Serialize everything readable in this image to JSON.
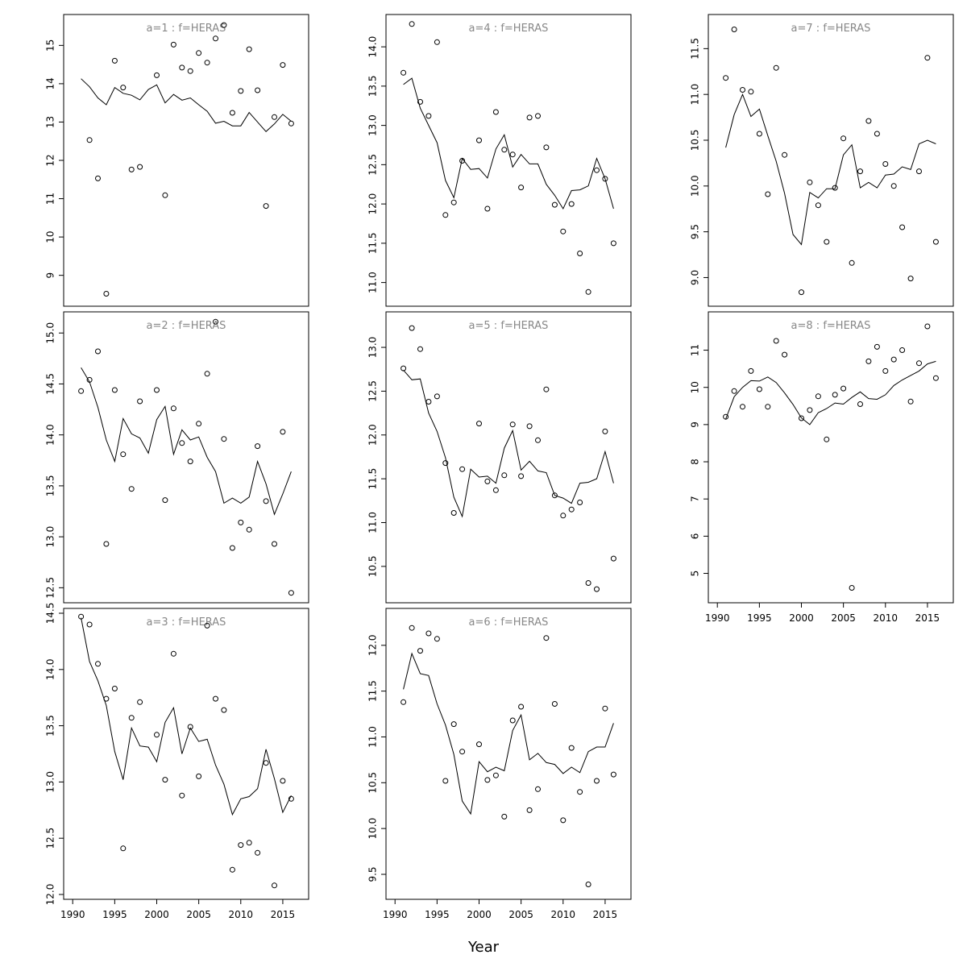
{
  "figure": {
    "xlabel": "Year",
    "line_color": "#000000",
    "point_color": "#000000",
    "title_color": "#888888"
  },
  "chart_data": [
    {
      "type": "scatter",
      "title": "a=1 : f=HERAS",
      "x": [
        1991,
        1992,
        1993,
        1994,
        1995,
        1996,
        1997,
        1998,
        1999,
        2000,
        2001,
        2002,
        2003,
        2004,
        2005,
        2006,
        2007,
        2008,
        2009,
        2010,
        2011,
        2012,
        2013,
        2014,
        2015,
        2016
      ],
      "series": [
        {
          "kind": "points",
          "values": [
            null,
            12.53,
            11.53,
            8.52,
            14.6,
            13.9,
            11.76,
            11.83,
            null,
            14.22,
            11.09,
            15.02,
            14.42,
            14.33,
            14.8,
            14.55,
            15.18,
            15.53,
            13.24,
            13.81,
            14.9,
            13.83,
            10.81,
            13.13,
            14.49,
            12.96
          ]
        },
        {
          "kind": "line",
          "values": [
            14.13,
            13.92,
            13.63,
            13.45,
            13.9,
            13.75,
            13.7,
            13.58,
            13.85,
            13.97,
            13.5,
            13.72,
            13.57,
            13.63,
            13.45,
            13.28,
            12.97,
            13.02,
            12.9,
            12.9,
            13.25,
            13.0,
            12.75,
            12.95,
            13.2,
            13.02
          ]
        }
      ],
      "yticks": [
        9,
        10,
        11,
        12,
        13,
        14,
        15
      ],
      "ylim": [
        8.32,
        15.68
      ],
      "xlim": [
        1989.5,
        2017.5
      ]
    },
    {
      "type": "scatter",
      "title": "a=2 : f=HERAS",
      "x": [
        1991,
        1992,
        1993,
        1994,
        1995,
        1996,
        1997,
        1998,
        1999,
        2000,
        2001,
        2002,
        2003,
        2004,
        2005,
        2006,
        2007,
        2008,
        2009,
        2010,
        2011,
        2012,
        2013,
        2014,
        2015,
        2016
      ],
      "series": [
        {
          "kind": "points",
          "values": [
            14.43,
            14.54,
            14.82,
            12.93,
            14.44,
            13.81,
            13.47,
            14.33,
            null,
            14.44,
            13.36,
            14.26,
            13.92,
            13.74,
            14.11,
            14.6,
            15.11,
            13.96,
            12.89,
            13.14,
            13.07,
            13.89,
            13.35,
            12.93,
            14.03,
            12.45
          ]
        },
        {
          "kind": "line",
          "values": [
            14.66,
            14.52,
            14.27,
            13.95,
            13.74,
            14.16,
            14.01,
            13.97,
            13.82,
            14.15,
            14.28,
            13.81,
            14.05,
            13.95,
            13.98,
            13.78,
            13.64,
            13.33,
            13.38,
            13.33,
            13.39,
            13.74,
            13.52,
            13.22,
            13.42,
            13.64
          ]
        }
      ],
      "yticks": [
        12.5,
        13.0,
        13.5,
        14.0,
        14.5,
        15.0
      ],
      "ylim": [
        12.4,
        15.16
      ],
      "xlim": [
        1989.5,
        2017.5
      ]
    },
    {
      "type": "scatter",
      "title": "a=3 : f=HERAS",
      "x": [
        1991,
        1992,
        1993,
        1994,
        1995,
        1996,
        1997,
        1998,
        1999,
        2000,
        2001,
        2002,
        2003,
        2004,
        2005,
        2006,
        2007,
        2008,
        2009,
        2010,
        2011,
        2012,
        2013,
        2014,
        2015,
        2016
      ],
      "series": [
        {
          "kind": "points",
          "values": [
            14.47,
            14.4,
            14.05,
            13.74,
            13.83,
            12.41,
            13.57,
            13.71,
            null,
            13.42,
            13.02,
            14.14,
            12.88,
            13.49,
            13.05,
            14.39,
            13.74,
            13.64,
            12.22,
            12.44,
            12.46,
            12.37,
            13.17,
            12.08,
            13.01,
            12.85
          ]
        },
        {
          "kind": "line",
          "values": [
            14.46,
            14.07,
            13.9,
            13.68,
            13.27,
            13.02,
            13.48,
            13.32,
            13.31,
            13.18,
            13.53,
            13.66,
            13.25,
            13.48,
            13.36,
            13.38,
            13.15,
            12.98,
            12.71,
            12.85,
            12.87,
            12.94,
            13.29,
            13.03,
            12.73,
            12.88
          ]
        }
      ],
      "yticks": [
        12.0,
        12.5,
        13.0,
        13.5,
        14.0,
        14.5
      ],
      "ylim": [
        12.0,
        14.5
      ],
      "xlim": [
        1989.5,
        2017.5
      ]
    },
    {
      "type": "scatter",
      "title": "a=4 : f=HERAS",
      "x": [
        1991,
        1992,
        1993,
        1994,
        1995,
        1996,
        1997,
        1998,
        1999,
        2000,
        2001,
        2002,
        2003,
        2004,
        2005,
        2006,
        2007,
        2008,
        2009,
        2010,
        2011,
        2012,
        2013,
        2014,
        2015,
        2016
      ],
      "series": [
        {
          "kind": "points",
          "values": [
            13.67,
            14.29,
            13.3,
            13.12,
            14.06,
            11.86,
            12.02,
            12.55,
            null,
            12.81,
            11.94,
            13.17,
            12.69,
            12.63,
            12.21,
            13.1,
            13.12,
            12.72,
            11.99,
            11.65,
            12.0,
            11.37,
            10.88,
            12.43,
            12.32,
            11.5
          ]
        },
        {
          "kind": "line",
          "values": [
            13.52,
            13.6,
            13.22,
            13.0,
            12.78,
            12.3,
            12.08,
            12.58,
            12.44,
            12.45,
            12.33,
            12.7,
            12.88,
            12.47,
            12.63,
            12.51,
            12.51,
            12.25,
            12.11,
            11.94,
            12.17,
            12.18,
            12.23,
            12.58,
            12.32,
            11.94
          ]
        }
      ],
      "yticks": [
        11.0,
        11.5,
        12.0,
        12.5,
        13.0,
        13.5,
        14.0
      ],
      "ylim": [
        10.76,
        14.35
      ],
      "xlim": [
        1989.5,
        2017.5
      ]
    },
    {
      "type": "scatter",
      "title": "a=5 : f=HERAS",
      "x": [
        1991,
        1992,
        1993,
        1994,
        1995,
        1996,
        1997,
        1998,
        1999,
        2000,
        2001,
        2002,
        2003,
        2004,
        2005,
        2006,
        2007,
        2008,
        2009,
        2010,
        2011,
        2012,
        2013,
        2014,
        2015,
        2016
      ],
      "series": [
        {
          "kind": "points",
          "values": [
            12.76,
            13.22,
            12.98,
            12.38,
            12.44,
            11.68,
            11.11,
            11.61,
            null,
            12.13,
            11.47,
            11.37,
            11.54,
            12.12,
            11.53,
            12.1,
            11.94,
            12.52,
            11.31,
            11.08,
            11.15,
            11.23,
            10.31,
            10.24,
            12.04,
            10.59
          ]
        },
        {
          "kind": "line",
          "values": [
            12.74,
            12.63,
            12.64,
            12.25,
            12.04,
            11.74,
            11.29,
            11.07,
            11.61,
            11.52,
            11.53,
            11.45,
            11.85,
            12.05,
            11.6,
            11.7,
            11.59,
            11.57,
            11.31,
            11.28,
            11.22,
            11.45,
            11.46,
            11.5,
            11.81,
            11.45
          ]
        }
      ],
      "yticks": [
        10.5,
        11.0,
        11.5,
        12.0,
        12.5,
        13.0
      ],
      "ylim": [
        10.14,
        13.35
      ],
      "xlim": [
        1989.5,
        2017.5
      ]
    },
    {
      "type": "scatter",
      "title": "a=6 : f=HERAS",
      "x": [
        1991,
        1992,
        1993,
        1994,
        1995,
        1996,
        1997,
        1998,
        1999,
        2000,
        2001,
        2002,
        2003,
        2004,
        2005,
        2006,
        2007,
        2008,
        2009,
        2010,
        2011,
        2012,
        2013,
        2014,
        2015,
        2016
      ],
      "series": [
        {
          "kind": "points",
          "values": [
            11.38,
            12.19,
            11.94,
            12.13,
            12.07,
            10.52,
            11.14,
            10.84,
            null,
            10.92,
            10.53,
            10.58,
            10.13,
            11.18,
            11.33,
            10.2,
            10.43,
            12.08,
            11.36,
            10.09,
            10.88,
            10.4,
            9.39,
            10.52,
            11.31,
            10.59
          ]
        },
        {
          "kind": "line",
          "values": [
            11.52,
            11.91,
            11.69,
            11.67,
            11.36,
            11.13,
            10.81,
            10.3,
            10.16,
            10.73,
            10.62,
            10.67,
            10.63,
            11.07,
            11.24,
            10.75,
            10.82,
            10.72,
            10.7,
            10.6,
            10.67,
            10.61,
            10.84,
            10.89,
            10.89,
            11.15
          ]
        }
      ],
      "yticks": [
        9.5,
        10.0,
        10.5,
        11.0,
        11.5,
        12.0
      ],
      "ylim": [
        9.28,
        12.35
      ],
      "xlim": [
        1989.5,
        2017.5
      ]
    },
    {
      "type": "scatter",
      "title": "a=7 : f=HERAS",
      "x": [
        1991,
        1992,
        1993,
        1994,
        1995,
        1996,
        1997,
        1998,
        1999,
        2000,
        2001,
        2002,
        2003,
        2004,
        2005,
        2006,
        2007,
        2008,
        2009,
        2010,
        2011,
        2012,
        2013,
        2014,
        2015,
        2016
      ],
      "series": [
        {
          "kind": "points",
          "values": [
            11.18,
            11.71,
            11.05,
            11.03,
            10.57,
            9.91,
            11.29,
            10.34,
            null,
            8.84,
            10.04,
            9.79,
            9.39,
            9.98,
            10.52,
            9.16,
            10.16,
            10.71,
            10.57,
            10.24,
            10.0,
            9.55,
            8.99,
            10.16,
            11.4,
            9.39
          ]
        },
        {
          "kind": "line",
          "values": [
            10.42,
            10.78,
            11.0,
            10.76,
            10.84,
            10.55,
            10.27,
            9.92,
            9.47,
            9.36,
            9.93,
            9.87,
            9.97,
            9.97,
            10.34,
            10.45,
            9.98,
            10.04,
            9.98,
            10.12,
            10.13,
            10.21,
            10.18,
            10.46,
            10.5,
            10.46
          ]
        }
      ],
      "yticks": [
        9.0,
        9.5,
        10.0,
        10.5,
        11.0,
        11.5
      ],
      "ylim": [
        8.74,
        11.82
      ],
      "xlim": [
        1989.5,
        2017.5
      ]
    },
    {
      "type": "scatter",
      "title": "a=8 : f=HERAS",
      "x": [
        1991,
        1992,
        1993,
        1994,
        1995,
        1996,
        1997,
        1998,
        1999,
        2000,
        2001,
        2002,
        2003,
        2004,
        2005,
        2006,
        2007,
        2008,
        2009,
        2010,
        2011,
        2012,
        2013,
        2014,
        2015,
        2016
      ],
      "series": [
        {
          "kind": "points",
          "values": [
            9.21,
            9.9,
            9.48,
            10.44,
            9.95,
            9.48,
            11.25,
            10.88,
            null,
            9.17,
            9.39,
            9.76,
            8.6,
            9.8,
            9.97,
            4.61,
            9.55,
            10.7,
            11.09,
            10.44,
            10.75,
            11.0,
            9.62,
            10.65,
            11.64,
            10.25
          ]
        },
        {
          "kind": "line",
          "values": [
            9.15,
            9.75,
            10.0,
            10.18,
            10.17,
            10.28,
            10.13,
            9.85,
            9.54,
            9.18,
            9.0,
            9.32,
            9.43,
            9.58,
            9.55,
            9.73,
            9.88,
            9.7,
            9.68,
            9.8,
            10.05,
            10.2,
            10.32,
            10.44,
            10.63,
            10.7
          ]
        }
      ],
      "yticks": [
        5,
        6,
        7,
        8,
        9,
        10,
        11
      ],
      "ylim": [
        4.34,
        11.9
      ],
      "xlim": [
        1989.5,
        2017.5
      ]
    }
  ],
  "xaxis_ticks": [
    1990,
    1995,
    2000,
    2005,
    2010,
    2015
  ]
}
